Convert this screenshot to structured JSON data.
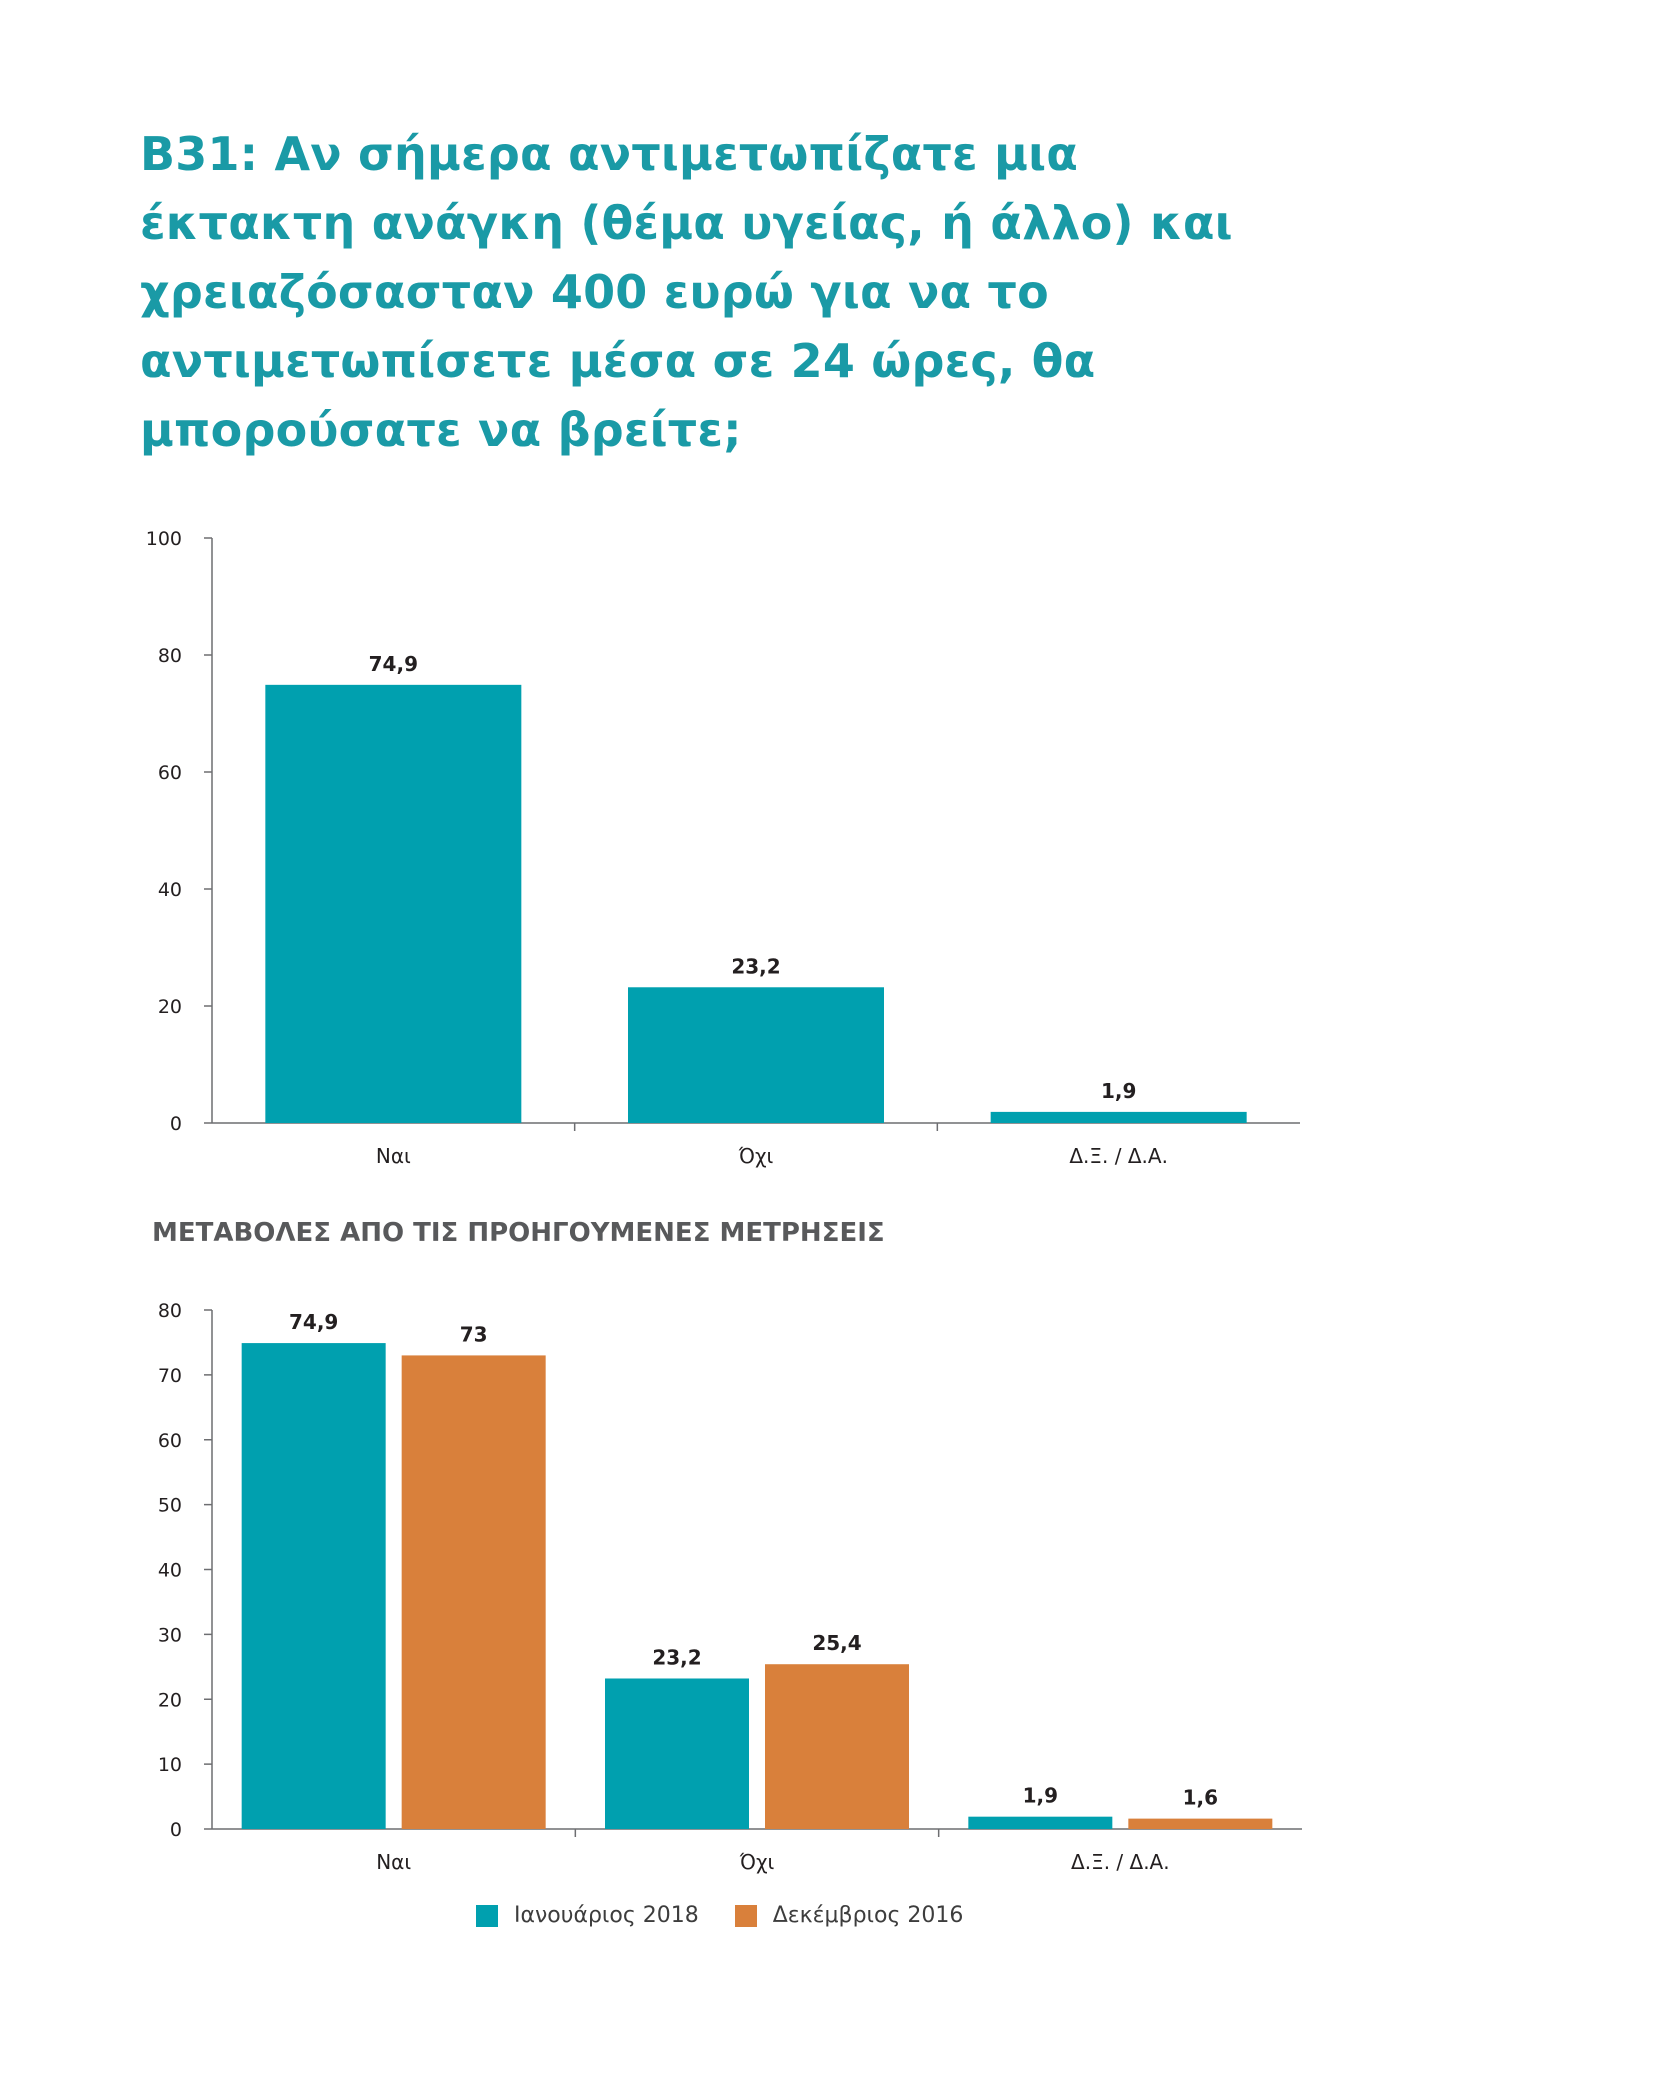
{
  "title": "B31: Αν σήμερα αντιμετωπίζατε μια έκτακτη ανάγκη (θέμα υγείας, ή άλλο) και χρειαζόσασταν 400 ευρώ για να το αντιμετωπίσετε μέσα σε 24 ώρες, θα μπορούσατε να βρείτε;",
  "section_heading": "ΜΕΤΑΒΟΛΕΣ ΑΠΟ ΤΙΣ ΠΡΟΗΓΟΥΜΕΝΕΣ ΜΕΤΡΗΣΕΙΣ",
  "colors": {
    "title": "#1a9aa6",
    "series_2018": "#00a0af",
    "series_2016": "#d9803b"
  },
  "chart_data": [
    {
      "type": "bar",
      "categories": [
        "Ναι",
        "Όχι",
        "Δ.Ξ. / Δ.Α."
      ],
      "series": [
        {
          "values": [
            74.9,
            23.2,
            1.9
          ],
          "labels": [
            "74,9",
            "23,2",
            "1,9"
          ],
          "color": "#00a0af"
        }
      ],
      "yticks": [
        "0",
        "20",
        "40",
        "60",
        "80",
        "100"
      ],
      "ylim": [
        0,
        100
      ],
      "grid": false
    },
    {
      "type": "bar",
      "categories": [
        "Ναι",
        "Όχι",
        "Δ.Ξ. / Δ.Α."
      ],
      "series": [
        {
          "name": "Ιανουάριος 2018",
          "values": [
            74.9,
            23.2,
            1.9
          ],
          "labels": [
            "74,9",
            "23,2",
            "1,9"
          ],
          "color": "#00a0af"
        },
        {
          "name": "Δεκέμβριος 2016",
          "values": [
            73,
            25.4,
            1.6
          ],
          "labels": [
            "73",
            "25,4",
            "1,6"
          ],
          "color": "#d9803b"
        }
      ],
      "yticks": [
        "0",
        "10",
        "20",
        "30",
        "40",
        "50",
        "60",
        "70",
        "80"
      ],
      "ylim": [
        0,
        80
      ],
      "grid": false,
      "legend_position": "bottom"
    }
  ]
}
